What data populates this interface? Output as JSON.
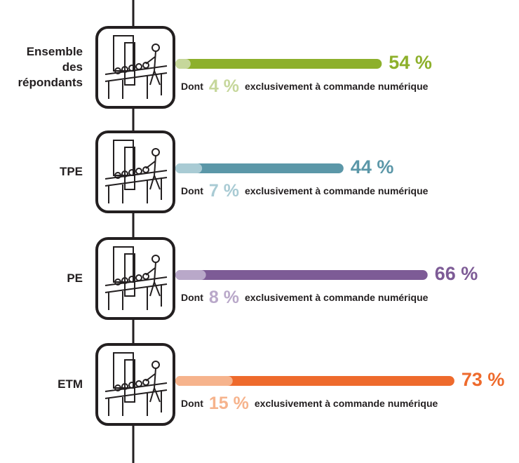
{
  "chart_data": {
    "type": "bar",
    "categories": [
      "Ensemble des répondants",
      "TPE",
      "PE",
      "ETM"
    ],
    "series": [
      {
        "values": [
          54,
          44,
          66,
          73
        ],
        "value_labels": [
          "54 %",
          "44 %",
          "66 %",
          "73 %"
        ],
        "colors": [
          "#8db02b",
          "#5b97a8",
          "#7d5b96",
          "#ee6a2c"
        ]
      },
      {
        "values": [
          4,
          7,
          8,
          15
        ],
        "value_labels": [
          "4 %",
          "7 %",
          "8 %",
          "15 %"
        ],
        "colors": [
          "#c6d79b",
          "#a9cbd4",
          "#b9a8c9",
          "#f6b38c"
        ]
      }
    ],
    "prefix": "Dont",
    "suffix": "exclusivement à commande numérique",
    "xlim": [
      0,
      100
    ]
  }
}
